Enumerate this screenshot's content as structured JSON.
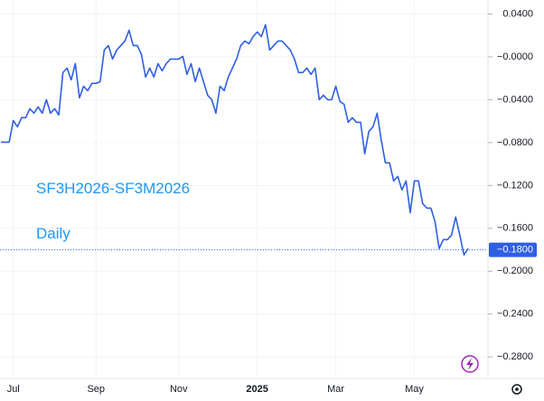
{
  "chart_data": {
    "type": "line",
    "title": "SF3H2026-SF3M2026",
    "subtitle": "Daily",
    "color": "#2f5fe3",
    "categories": [
      null,
      null,
      null,
      "Jul",
      null,
      null,
      null,
      null,
      null,
      null,
      null,
      null,
      null,
      null,
      null,
      null,
      null,
      null,
      null,
      null,
      null,
      null,
      null,
      "Sep",
      null,
      null,
      null,
      null,
      null,
      null,
      null,
      null,
      null,
      null,
      null,
      null,
      null,
      null,
      null,
      null,
      null,
      null,
      null,
      "Nov",
      null,
      null,
      null,
      null,
      null,
      null,
      null,
      null,
      null,
      null,
      null,
      null,
      null,
      null,
      null,
      null,
      null,
      null,
      "2025",
      null,
      null,
      null,
      null,
      null,
      null,
      null,
      null,
      null,
      null,
      null,
      null,
      null,
      null,
      null,
      null,
      null,
      null,
      "Mar",
      null,
      null,
      null,
      null,
      null,
      null,
      null,
      null,
      null,
      null,
      null,
      null,
      null,
      null,
      null,
      null,
      null,
      null,
      "May",
      null,
      null,
      null,
      null,
      null,
      null,
      null,
      null,
      null,
      null,
      null,
      null,
      null
    ],
    "values": [
      -0.0796,
      -0.0796,
      -0.0796,
      -0.0594,
      -0.0653,
      -0.0568,
      -0.0568,
      -0.0484,
      -0.0526,
      -0.0467,
      -0.0526,
      -0.04,
      -0.0526,
      -0.0484,
      -0.0543,
      -0.0147,
      -0.0105,
      -0.0215,
      -0.0063,
      -0.0383,
      -0.0274,
      -0.0316,
      -0.0248,
      -0.0248,
      -0.0232,
      0.0063,
      0.0105,
      -0.0021,
      0.0063,
      0.0105,
      0.0147,
      0.0248,
      0.0105,
      0.0105,
      0.0021,
      -0.0189,
      -0.0105,
      -0.0189,
      -0.0063,
      -0.0131,
      -0.0063,
      -0.0021,
      -0.0021,
      -0.0021,
      0.0004,
      -0.0164,
      -0.0063,
      -0.0232,
      -0.0105,
      -0.0232,
      -0.0358,
      -0.04,
      -0.0526,
      -0.0274,
      -0.0316,
      -0.0189,
      -0.0105,
      -0.0021,
      0.0105,
      0.0147,
      0.0122,
      0.0189,
      0.0232,
      0.0189,
      0.0299,
      0.0063,
      0.0105,
      0.0147,
      0.0147,
      0.0105,
      0.0063,
      -0.0021,
      -0.0147,
      -0.0147,
      -0.0105,
      -0.0164,
      -0.0105,
      -0.04,
      -0.0358,
      -0.04,
      -0.04,
      -0.0274,
      -0.0417,
      -0.0442,
      -0.0611,
      -0.0568,
      -0.0611,
      -0.0611,
      -0.0905,
      -0.0695,
      -0.0653,
      -0.0526,
      -0.0779,
      -0.0989,
      -0.0989,
      -0.1158,
      -0.1116,
      -0.1242,
      -0.1158,
      -0.1453,
      -0.1158,
      -0.1158,
      -0.1368,
      -0.1411,
      -0.1411,
      -0.1537,
      -0.1789,
      -0.1705,
      -0.1705,
      -0.1663,
      -0.1495,
      -0.1663,
      -0.1848,
      -0.1789
    ],
    "ylim": [
      -0.3,
      0.053
    ],
    "yticks": [
      {
        "value": 0.04,
        "label": "0.0400"
      },
      {
        "value": 0,
        "label": "−0.0000"
      },
      {
        "value": -0.04,
        "label": "−0.0400"
      },
      {
        "value": -0.08,
        "label": "−0.0800"
      },
      {
        "value": -0.12,
        "label": "−0.1200"
      },
      {
        "value": -0.16,
        "label": "−0.1600"
      },
      {
        "value": -0.2,
        "label": "−0.2000"
      },
      {
        "value": -0.24,
        "label": "−0.2400"
      },
      {
        "value": -0.28,
        "label": "−0.2800"
      }
    ],
    "last_value": {
      "value": -0.18,
      "label": "−0.1800"
    },
    "grid": true
  }
}
